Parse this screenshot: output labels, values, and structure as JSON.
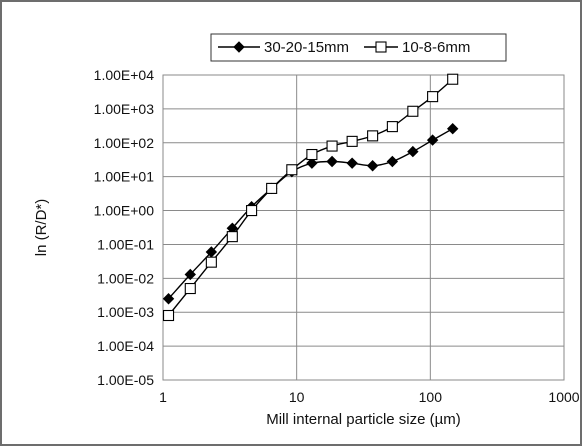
{
  "chart_data": {
    "type": "line",
    "title": "",
    "xlabel": "Mill internal particle size (µm)",
    "ylabel": "ln (R/D*)",
    "x_scale": "log",
    "y_scale": "log",
    "xlim": [
      1,
      1000
    ],
    "ylim": [
      1e-05,
      10000
    ],
    "x_ticks": [
      1,
      10,
      100,
      1000
    ],
    "x_tick_labels": [
      "1",
      "10",
      "100",
      "1000"
    ],
    "y_ticks": [
      1e-05,
      0.0001,
      0.001,
      0.01,
      0.1,
      1,
      10,
      100,
      1000,
      10000
    ],
    "y_tick_labels": [
      "1.00E-05",
      "1.00E-04",
      "1.00E-03",
      "1.00E-02",
      "1.00E-01",
      "1.00E+00",
      "1.00E+01",
      "1.00E+02",
      "1.00E+03",
      "1.00E+04"
    ],
    "grid": "vertical major lines at x ticks and horizontal major lines at y ticks",
    "legend_position": "top",
    "series": [
      {
        "name": "30-20-15mm",
        "marker": "filled-diamond",
        "color": "#000000",
        "x": [
          1.1,
          1.6,
          2.3,
          3.3,
          4.6,
          6.5,
          9.2,
          13,
          18.4,
          26,
          37,
          52,
          74,
          104,
          147
        ],
        "y": [
          0.0025,
          0.013,
          0.06,
          0.3,
          1.3,
          4.5,
          14,
          25,
          28,
          25,
          21,
          28,
          55,
          120,
          260
        ]
      },
      {
        "name": "10-8-6mm",
        "marker": "open-square",
        "color": "#000000",
        "x": [
          1.1,
          1.6,
          2.3,
          3.3,
          4.6,
          6.5,
          9.2,
          13,
          18.4,
          26,
          37,
          52,
          74,
          104,
          147
        ],
        "y": [
          0.0008,
          0.005,
          0.03,
          0.17,
          1.0,
          4.5,
          16,
          45,
          80,
          110,
          160,
          300,
          850,
          2300,
          7500
        ]
      }
    ]
  }
}
